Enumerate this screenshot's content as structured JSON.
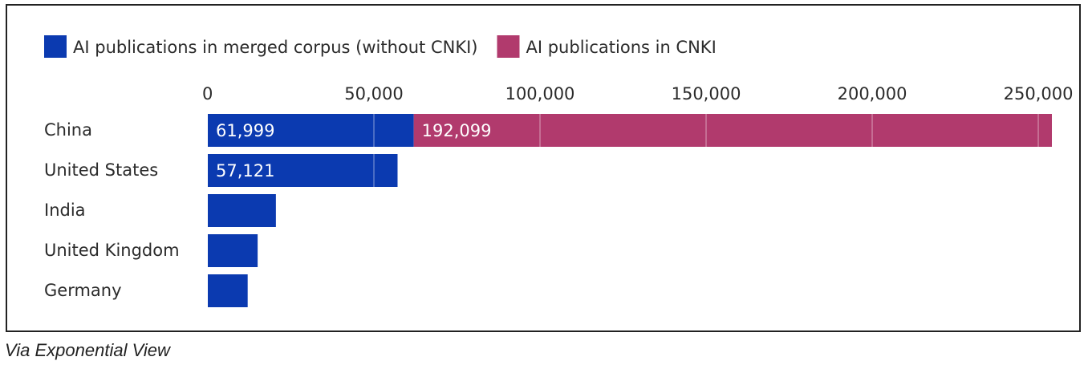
{
  "chart_data": {
    "type": "bar",
    "orientation": "horizontal",
    "stacked": true,
    "categories": [
      "China",
      "United States",
      "India",
      "United Kingdom",
      "Germany"
    ],
    "series": [
      {
        "name": "AI publications in merged corpus (without CNKI)",
        "color": "#0b3ab0",
        "values": [
          61999,
          57121,
          20500,
          15000,
          12000
        ],
        "labels": [
          "61,999",
          "57,121",
          null,
          null,
          null
        ]
      },
      {
        "name": "AI publications in CNKI",
        "color": "#b13a6d",
        "values": [
          192099,
          0,
          0,
          0,
          0
        ],
        "labels": [
          "192,099",
          null,
          null,
          null,
          null
        ]
      }
    ],
    "x_ticks": [
      0,
      50000,
      100000,
      150000,
      200000,
      250000
    ],
    "x_tick_labels": [
      "0",
      "50,000",
      "100,000",
      "150,000",
      "200,000",
      "250,000"
    ],
    "xlim": [
      0,
      254098
    ],
    "grid": true,
    "legend_position": "top-left"
  },
  "caption": "Via Exponential View"
}
